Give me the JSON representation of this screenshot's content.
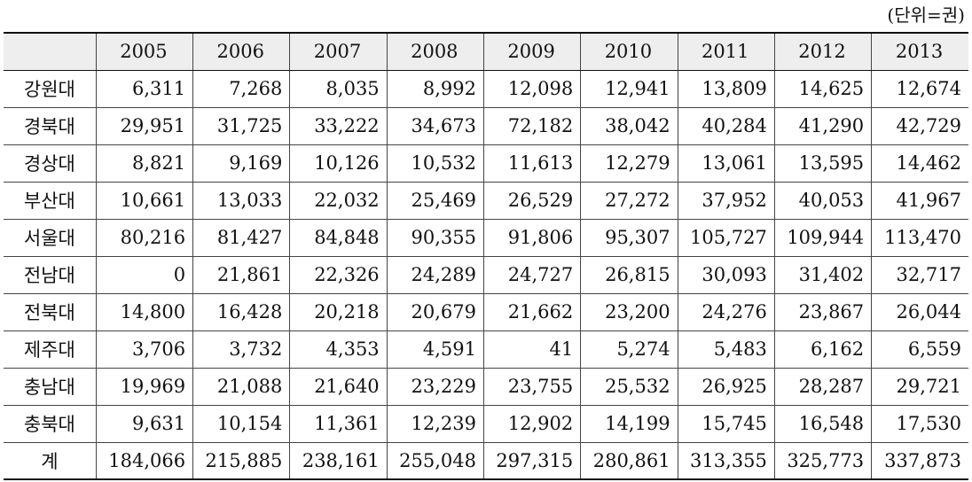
{
  "unit_note": "(단위=권)",
  "table": {
    "corner": "",
    "years": [
      "2005",
      "2006",
      "2007",
      "2008",
      "2009",
      "2010",
      "2011",
      "2012",
      "2013"
    ],
    "rows": [
      {
        "label": "강원대",
        "values": [
          "6,311",
          "7,268",
          "8,035",
          "8,992",
          "12,098",
          "12,941",
          "13,809",
          "14,625",
          "12,674"
        ]
      },
      {
        "label": "경북대",
        "values": [
          "29,951",
          "31,725",
          "33,222",
          "34,673",
          "72,182",
          "38,042",
          "40,284",
          "41,290",
          "42,729"
        ]
      },
      {
        "label": "경상대",
        "values": [
          "8,821",
          "9,169",
          "10,126",
          "10,532",
          "11,613",
          "12,279",
          "13,061",
          "13,595",
          "14,462"
        ]
      },
      {
        "label": "부산대",
        "values": [
          "10,661",
          "13,033",
          "22,032",
          "25,469",
          "26,529",
          "27,272",
          "37,952",
          "40,053",
          "41,967"
        ]
      },
      {
        "label": "서울대",
        "values": [
          "80,216",
          "81,427",
          "84,848",
          "90,355",
          "91,806",
          "95,307",
          "105,727",
          "109,944",
          "113,470"
        ]
      },
      {
        "label": "전남대",
        "values": [
          "0",
          "21,861",
          "22,326",
          "24,289",
          "24,727",
          "26,815",
          "30,093",
          "31,402",
          "32,717"
        ]
      },
      {
        "label": "전북대",
        "values": [
          "14,800",
          "16,428",
          "20,218",
          "20,679",
          "21,662",
          "23,200",
          "24,276",
          "23,867",
          "26,044"
        ]
      },
      {
        "label": "제주대",
        "values": [
          "3,706",
          "3,732",
          "4,353",
          "4,591",
          "41",
          "5,274",
          "5,483",
          "6,162",
          "6,559"
        ]
      },
      {
        "label": "충남대",
        "values": [
          "19,969",
          "21,088",
          "21,640",
          "23,229",
          "23,755",
          "25,532",
          "26,925",
          "28,287",
          "29,721"
        ]
      },
      {
        "label": "충북대",
        "values": [
          "9,631",
          "10,154",
          "11,361",
          "12,239",
          "12,902",
          "14,199",
          "15,745",
          "16,548",
          "17,530"
        ]
      },
      {
        "label": "계",
        "values": [
          "184,066",
          "215,885",
          "238,161",
          "255,048",
          "297,315",
          "280,861",
          "313,355",
          "325,773",
          "337,873"
        ]
      }
    ]
  }
}
